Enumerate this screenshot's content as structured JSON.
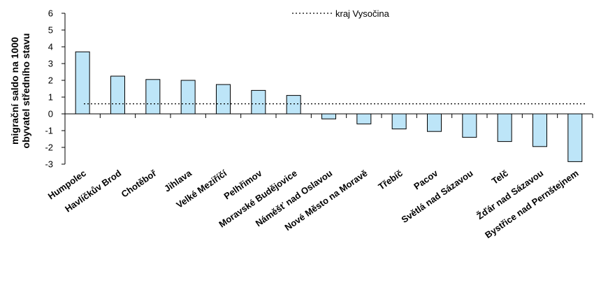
{
  "chart_data": {
    "type": "bar",
    "ylabel": [
      "migrační saldo na 1000",
      "obyvatel středního stavu"
    ],
    "ylim": [
      -3,
      6
    ],
    "yticks": [
      6,
      5,
      4,
      3,
      2,
      1,
      0,
      -1,
      -2,
      -3
    ],
    "categories": [
      "Humpolec",
      "Havlíčkův Brod",
      "Chotěboř",
      "Jihlava",
      "Velké Meziříčí",
      "Pelhřimov",
      "Moravské Budějovice",
      "Náměšť nad Oslavou",
      "Nové Město na Moravě",
      "Třebíč",
      "Pacov",
      "Světlá nad Sázavou",
      "Telč",
      "Žďár nad Sázavou",
      "Bystřice nad Pernštejnem"
    ],
    "values": [
      3.7,
      2.25,
      2.05,
      2.0,
      1.75,
      1.4,
      1.1,
      -0.3,
      -0.6,
      -0.9,
      -1.05,
      -1.4,
      -1.65,
      -1.95,
      -2.85
    ],
    "reference_line": {
      "label": "kraj Vysočina",
      "value": 0.6
    },
    "legend_position": "top-right",
    "grid": false,
    "colors": {
      "bar_fill": "#BDE5F8",
      "bar_stroke": "#000000",
      "line": "#000000"
    }
  }
}
